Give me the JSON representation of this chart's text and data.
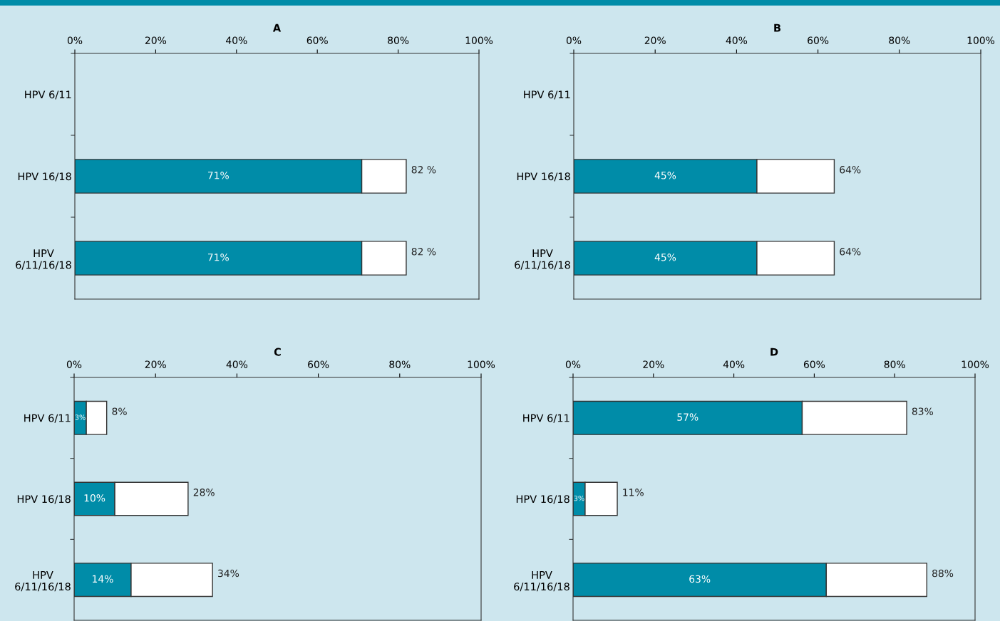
{
  "chart_data": [
    {
      "type": "bar",
      "orientation": "horizontal",
      "stacked": true,
      "title": "A",
      "categories": [
        "HPV 6/11",
        "HPV 16/18",
        "HPV\n6/11/16/18"
      ],
      "xlim": [
        0,
        100
      ],
      "xticks": [
        {
          "value": 0,
          "label": "0%"
        },
        {
          "value": 20,
          "label": "20%"
        },
        {
          "value": 40,
          "label": "40%"
        },
        {
          "value": 60,
          "label": "60%"
        },
        {
          "value": 80,
          "label": "80%"
        },
        {
          "value": 100,
          "label": "100%"
        }
      ],
      "grid": false,
      "totals": [
        null,
        "82 %",
        "82 %"
      ],
      "series": [
        {
          "color": "#008ca8",
          "values": [
            null,
            71,
            71
          ],
          "value_labels": [
            null,
            "71%",
            "71%"
          ]
        },
        {
          "color": "#ffffff",
          "values": [
            null,
            11,
            11
          ]
        }
      ]
    },
    {
      "type": "bar",
      "orientation": "horizontal",
      "stacked": true,
      "title": "B",
      "categories": [
        "HPV 6/11",
        "HPV 16/18",
        "HPV\n6/11/16/18"
      ],
      "xlim": [
        0,
        100
      ],
      "xticks": [
        {
          "value": 0,
          "label": "0%"
        },
        {
          "value": 20,
          "label": "20%"
        },
        {
          "value": 40,
          "label": "40%"
        },
        {
          "value": 60,
          "label": "60%"
        },
        {
          "value": 80,
          "label": "80%"
        },
        {
          "value": 100,
          "label": "100%"
        }
      ],
      "grid": false,
      "totals": [
        null,
        "64%",
        "64%"
      ],
      "series": [
        {
          "color": "#008ca8",
          "values": [
            null,
            45,
            45
          ],
          "value_labels": [
            null,
            "45%",
            "45%"
          ]
        },
        {
          "color": "#ffffff",
          "values": [
            null,
            19,
            19
          ]
        }
      ]
    },
    {
      "type": "bar",
      "orientation": "horizontal",
      "stacked": true,
      "title": "C",
      "categories": [
        "HPV 6/11",
        "HPV 16/18",
        "HPV\n6/11/16/18"
      ],
      "xlim": [
        0,
        100
      ],
      "xticks": [
        {
          "value": 0,
          "label": "0%"
        },
        {
          "value": 20,
          "label": "20%"
        },
        {
          "value": 40,
          "label": "40%"
        },
        {
          "value": 60,
          "label": "60%"
        },
        {
          "value": 80,
          "label": "80%"
        },
        {
          "value": 100,
          "label": "100%"
        }
      ],
      "grid": false,
      "totals": [
        "8%",
        "28%",
        "34%"
      ],
      "series": [
        {
          "color": "#008ca8",
          "values": [
            3,
            10,
            14
          ],
          "value_labels": [
            "3%",
            "10%",
            "14%"
          ]
        },
        {
          "color": "#ffffff",
          "values": [
            5,
            18,
            20
          ]
        }
      ]
    },
    {
      "type": "bar",
      "orientation": "horizontal",
      "stacked": true,
      "title": "D",
      "categories": [
        "HPV 6/11",
        "HPV 16/18",
        "HPV\n6/11/16/18"
      ],
      "xlim": [
        0,
        100
      ],
      "xticks": [
        {
          "value": 0,
          "label": "0%"
        },
        {
          "value": 20,
          "label": "20%"
        },
        {
          "value": 40,
          "label": "40%"
        },
        {
          "value": 60,
          "label": "60%"
        },
        {
          "value": 80,
          "label": "80%"
        },
        {
          "value": 100,
          "label": "100%"
        }
      ],
      "grid": false,
      "totals": [
        "83%",
        "11%",
        "88%"
      ],
      "series": [
        {
          "color": "#008ca8",
          "values": [
            57,
            3,
            63
          ],
          "value_labels": [
            "57%",
            "3%",
            "63%"
          ]
        },
        {
          "color": "#ffffff",
          "values": [
            26,
            8,
            25
          ]
        }
      ]
    }
  ]
}
